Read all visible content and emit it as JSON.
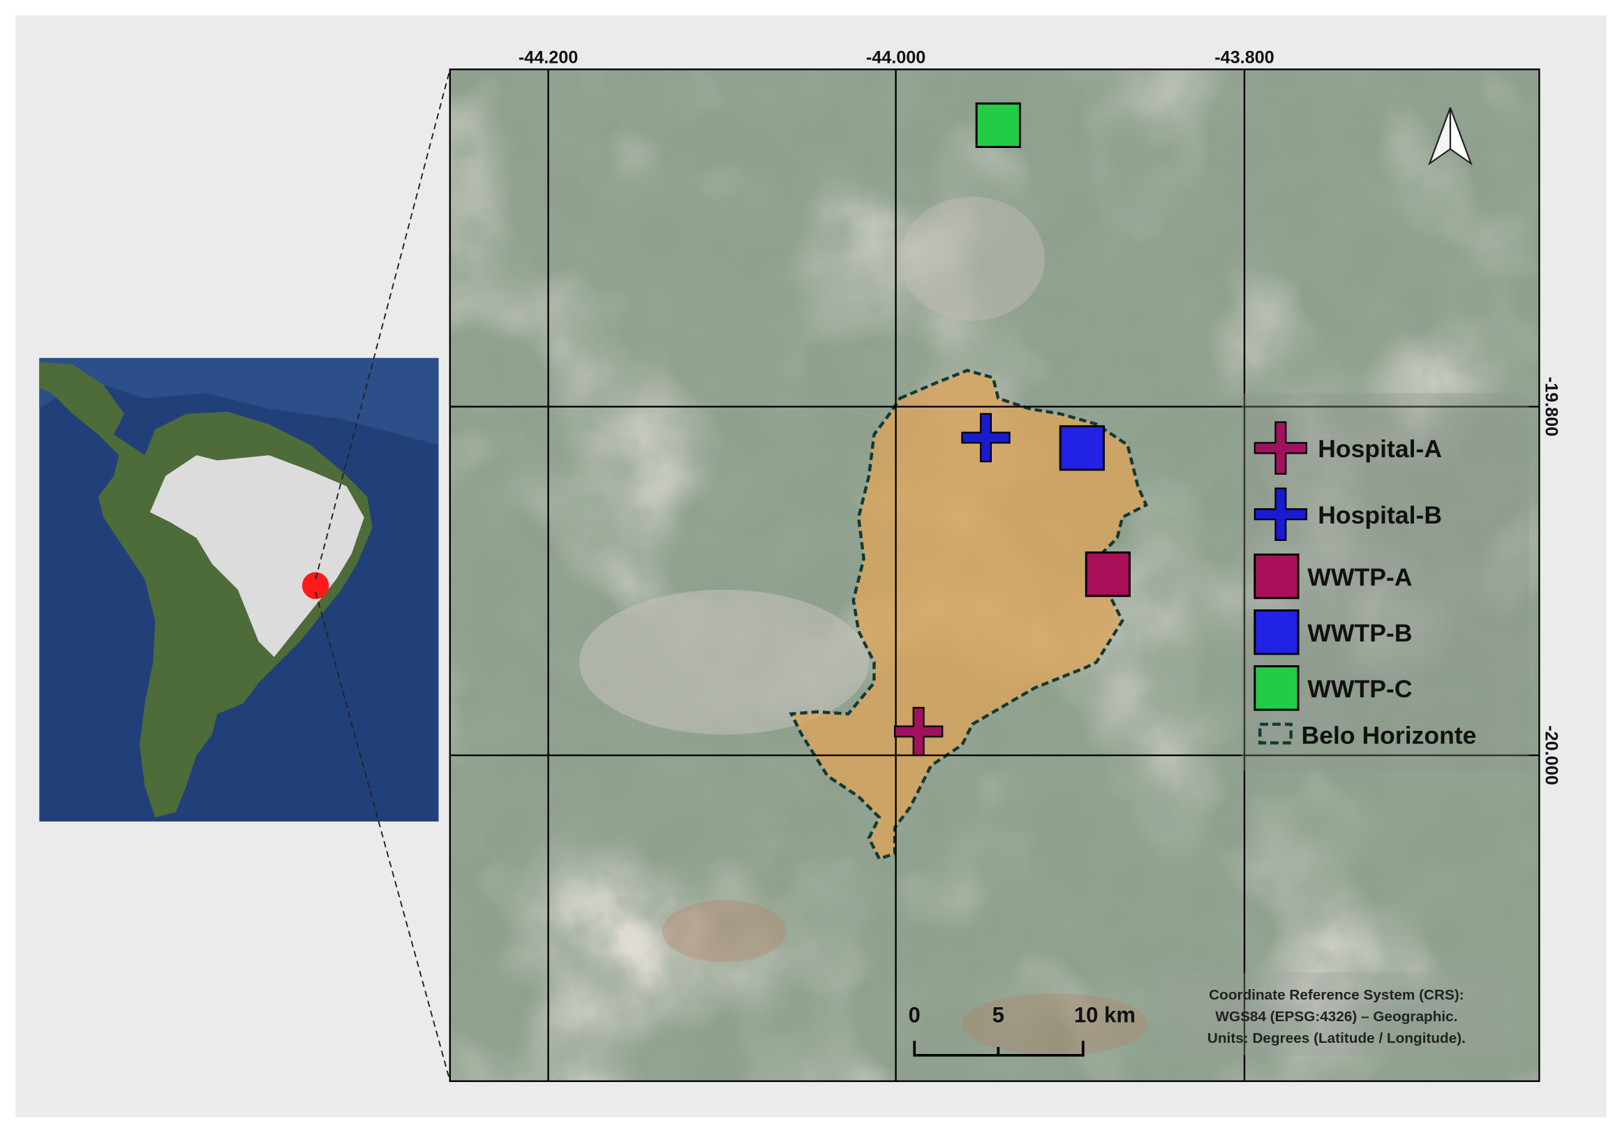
{
  "map": {
    "longitude_labels": [
      "-44.200",
      "-44.000",
      "-43.800"
    ],
    "latitude_labels": [
      "-19.800",
      "-20.000"
    ],
    "legend": [
      {
        "label": "Hospital-A"
      },
      {
        "label": "Hospital-B"
      },
      {
        "label": "WWTP-A"
      },
      {
        "label": "WWTP-B"
      },
      {
        "label": "WWTP-C"
      },
      {
        "label": "Belo Horizonte"
      }
    ],
    "scale_bar": {
      "labels": [
        "0",
        "5",
        "10 km"
      ]
    },
    "crs_note": [
      "Coordinate Reference System (CRS):",
      "WGS84 (EPSG:4326) – Geographic.",
      "Units: Degrees (Latitude / Longitude)."
    ]
  }
}
